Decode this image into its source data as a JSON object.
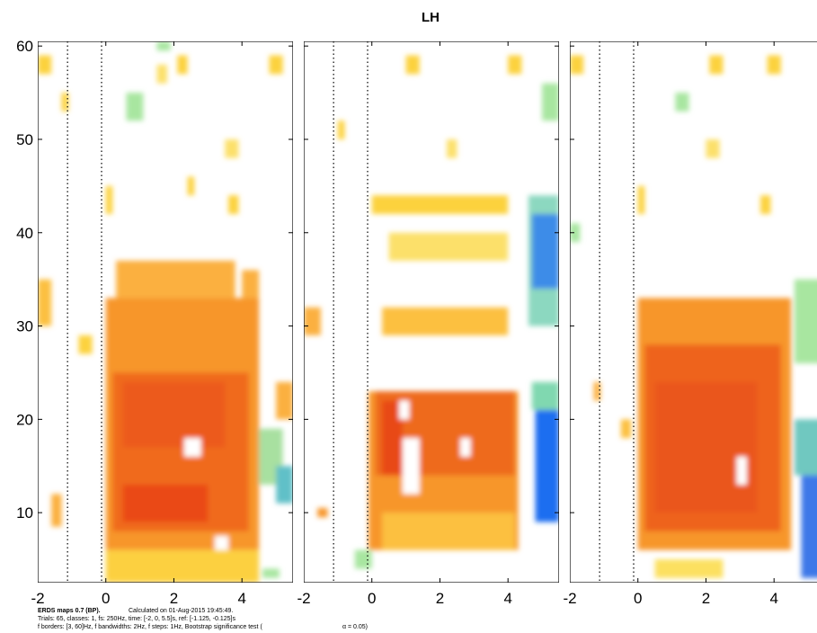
{
  "chart_data": {
    "type": "heatmap",
    "title": "LH",
    "xlim": [
      -2,
      5.5
    ],
    "ylim": [
      2.5,
      60.5
    ],
    "xticks": [
      -2,
      0,
      2,
      4
    ],
    "yticks": [
      10,
      20,
      30,
      40,
      50,
      60
    ],
    "ref_lines": [
      -1.125,
      -0.125
    ],
    "footer": [
      "ERDS maps 0.7 (BP).",
      "Calculated on 01-Aug-2015 19:45:49.",
      "Trials: 65, classes: 1, fs: 250Hz, time: [-2, 0, 5.5]s, ref: [-1.125, -0.125]s",
      "f borders: [3, 60]Hz, f bandwidths: 2Hz, f steps: 1Hz, Bootstrap significance test (",
      "α = 0.05)"
    ],
    "panels": [
      {
        "patches": [
          {
            "x": [
              0,
              4.5
            ],
            "y": [
              6,
              33
            ],
            "color": "#f7962a"
          },
          {
            "x": [
              0.3,
              3.8
            ],
            "y": [
              33,
              37
            ],
            "color": "#fbb040"
          },
          {
            "x": [
              0,
              4.5
            ],
            "y": [
              2.5,
              6
            ],
            "color": "#fcd040"
          },
          {
            "x": [
              0.2,
              4.2
            ],
            "y": [
              8,
              25
            ],
            "color": "#f06a1e"
          },
          {
            "x": [
              0.5,
              3
            ],
            "y": [
              9,
              13
            ],
            "color": "#ea4a18"
          },
          {
            "x": [
              0.5,
              3.5
            ],
            "y": [
              17,
              24
            ],
            "color": "#ec5a1a"
          },
          {
            "x": [
              2.3,
              2.8
            ],
            "y": [
              16,
              18
            ],
            "color": "#ffffff"
          },
          {
            "x": [
              3.2,
              3.6
            ],
            "y": [
              6,
              7.5
            ],
            "color": "#ffffff"
          },
          {
            "x": [
              -2,
              -1.6
            ],
            "y": [
              30,
              35
            ],
            "color": "#fcc040"
          },
          {
            "x": [
              -1.6,
              -1.3
            ],
            "y": [
              8.5,
              12
            ],
            "color": "#fbb040"
          },
          {
            "x": [
              4.5,
              5.2
            ],
            "y": [
              13,
              19
            ],
            "color": "#a8e0a0"
          },
          {
            "x": [
              5,
              5.5
            ],
            "y": [
              11,
              15
            ],
            "color": "#60c0c8"
          },
          {
            "x": [
              5,
              5.5
            ],
            "y": [
              20,
              24
            ],
            "color": "#fbb040"
          },
          {
            "x": [
              4,
              4.5
            ],
            "y": [
              33,
              36
            ],
            "color": "#fbb040"
          },
          {
            "x": [
              -2,
              -1.6
            ],
            "y": [
              57,
              59
            ],
            "color": "#fcd23c"
          },
          {
            "x": [
              2.1,
              2.4
            ],
            "y": [
              57,
              59
            ],
            "color": "#fcd23c"
          },
          {
            "x": [
              4.8,
              5.2
            ],
            "y": [
              57,
              59
            ],
            "color": "#fcd23c"
          },
          {
            "x": [
              1.5,
              1.8
            ],
            "y": [
              56,
              58
            ],
            "color": "#fce06a"
          },
          {
            "x": [
              -1.3,
              -1.1
            ],
            "y": [
              53,
              55
            ],
            "color": "#fcd23c"
          },
          {
            "x": [
              0,
              0.2
            ],
            "y": [
              42,
              45
            ],
            "color": "#fcd23c"
          },
          {
            "x": [
              3.5,
              3.9
            ],
            "y": [
              48,
              50
            ],
            "color": "#fce06a"
          },
          {
            "x": [
              2.4,
              2.6
            ],
            "y": [
              44,
              46
            ],
            "color": "#fcd23c"
          },
          {
            "x": [
              3.6,
              3.9
            ],
            "y": [
              42,
              44
            ],
            "color": "#fcd23c"
          },
          {
            "x": [
              0.6,
              1.1
            ],
            "y": [
              52,
              55
            ],
            "color": "#a8e6a0"
          },
          {
            "x": [
              1.5,
              1.9
            ],
            "y": [
              59.5,
              60.5
            ],
            "color": "#a8e6a0"
          },
          {
            "x": [
              -0.8,
              -0.4
            ],
            "y": [
              27,
              29
            ],
            "color": "#fcd23c"
          },
          {
            "x": [
              4.6,
              5.1
            ],
            "y": [
              3,
              4
            ],
            "color": "#a8e6a0"
          }
        ]
      },
      {
        "patches": [
          {
            "x": [
              -0.1,
              4.3
            ],
            "y": [
              6,
              23
            ],
            "color": "#f7962a"
          },
          {
            "x": [
              0.3,
              4.2
            ],
            "y": [
              6,
              10
            ],
            "color": "#fcc040"
          },
          {
            "x": [
              0.1,
              4.2
            ],
            "y": [
              14,
              23
            ],
            "color": "#ee6a1e"
          },
          {
            "x": [
              0.3,
              0.9
            ],
            "y": [
              14,
              22
            ],
            "color": "#e84a18"
          },
          {
            "x": [
              0.9,
              1.4
            ],
            "y": [
              12,
              18
            ],
            "color": "#ffffff"
          },
          {
            "x": [
              0.8,
              1.1
            ],
            "y": [
              20,
              22
            ],
            "color": "#ffffff"
          },
          {
            "x": [
              2.6,
              2.9
            ],
            "y": [
              16,
              18
            ],
            "color": "#ffffff"
          },
          {
            "x": [
              4.6,
              5.5
            ],
            "y": [
              30,
              44
            ],
            "color": "#8cd8c0"
          },
          {
            "x": [
              4.7,
              5.5
            ],
            "y": [
              34,
              42
            ],
            "color": "#3c8ce8"
          },
          {
            "x": [
              4.7,
              5.5
            ],
            "y": [
              21,
              24
            ],
            "color": "#80d8b0"
          },
          {
            "x": [
              4.8,
              5.5
            ],
            "y": [
              9,
              21
            ],
            "color": "#1e6ef0"
          },
          {
            "x": [
              0.3,
              4
            ],
            "y": [
              29,
              32
            ],
            "color": "#fcc040"
          },
          {
            "x": [
              0.5,
              4
            ],
            "y": [
              37,
              40
            ],
            "color": "#fce06a"
          },
          {
            "x": [
              0,
              4
            ],
            "y": [
              42,
              44
            ],
            "color": "#fcd23c"
          },
          {
            "x": [
              -2,
              -1.5
            ],
            "y": [
              29,
              32
            ],
            "color": "#fbb040"
          },
          {
            "x": [
              -1.6,
              -1.3
            ],
            "y": [
              9.5,
              10.5
            ],
            "color": "#f7962a"
          },
          {
            "x": [
              -0.5,
              0
            ],
            "y": [
              4,
              6
            ],
            "color": "#a8e6a0"
          },
          {
            "x": [
              1,
              1.4
            ],
            "y": [
              57,
              59
            ],
            "color": "#fcd23c"
          },
          {
            "x": [
              4,
              4.4
            ],
            "y": [
              57,
              59
            ],
            "color": "#fcd23c"
          },
          {
            "x": [
              5,
              5.5
            ],
            "y": [
              52,
              56
            ],
            "color": "#a8e6a0"
          },
          {
            "x": [
              -1,
              -0.8
            ],
            "y": [
              50,
              52
            ],
            "color": "#fcd23c"
          },
          {
            "x": [
              2.2,
              2.5
            ],
            "y": [
              48,
              50
            ],
            "color": "#fce06a"
          }
        ]
      },
      {
        "patches": [
          {
            "x": [
              0,
              4.5
            ],
            "y": [
              6,
              33
            ],
            "color": "#f7962a"
          },
          {
            "x": [
              0.2,
              4.2
            ],
            "y": [
              8,
              28
            ],
            "color": "#ee641c"
          },
          {
            "x": [
              0.5,
              3.5
            ],
            "y": [
              10,
              24
            ],
            "color": "#ea561a"
          },
          {
            "x": [
              2.9,
              3.2
            ],
            "y": [
              13,
              16
            ],
            "color": "#ffffff"
          },
          {
            "x": [
              4.6,
              5.5
            ],
            "y": [
              14,
              20
            ],
            "color": "#70c8c0"
          },
          {
            "x": [
              4.8,
              5.5
            ],
            "y": [
              3,
              14
            ],
            "color": "#3c78e8"
          },
          {
            "x": [
              4.6,
              5.5
            ],
            "y": [
              26,
              35
            ],
            "color": "#a8e6a0"
          },
          {
            "x": [
              0.5,
              2.5
            ],
            "y": [
              3,
              5
            ],
            "color": "#fce060"
          },
          {
            "x": [
              -2,
              -1.6
            ],
            "y": [
              57,
              59
            ],
            "color": "#fcd23c"
          },
          {
            "x": [
              2.1,
              2.5
            ],
            "y": [
              57,
              59
            ],
            "color": "#fcd23c"
          },
          {
            "x": [
              3.8,
              4.2
            ],
            "y": [
              57,
              59
            ],
            "color": "#fcd23c"
          },
          {
            "x": [
              1.1,
              1.5
            ],
            "y": [
              53,
              55
            ],
            "color": "#a8e6a0"
          },
          {
            "x": [
              2,
              2.4
            ],
            "y": [
              48,
              50
            ],
            "color": "#fce06a"
          },
          {
            "x": [
              0,
              0.2
            ],
            "y": [
              42,
              45
            ],
            "color": "#fcd23c"
          },
          {
            "x": [
              3.6,
              3.9
            ],
            "y": [
              42,
              44
            ],
            "color": "#fcd23c"
          },
          {
            "x": [
              -1.3,
              -1.1
            ],
            "y": [
              22,
              24
            ],
            "color": "#fbb040"
          },
          {
            "x": [
              -0.5,
              -0.2
            ],
            "y": [
              18,
              20
            ],
            "color": "#fcc040"
          },
          {
            "x": [
              -2,
              -1.7
            ],
            "y": [
              39,
              41
            ],
            "color": "#a8e6a0"
          }
        ]
      }
    ]
  }
}
